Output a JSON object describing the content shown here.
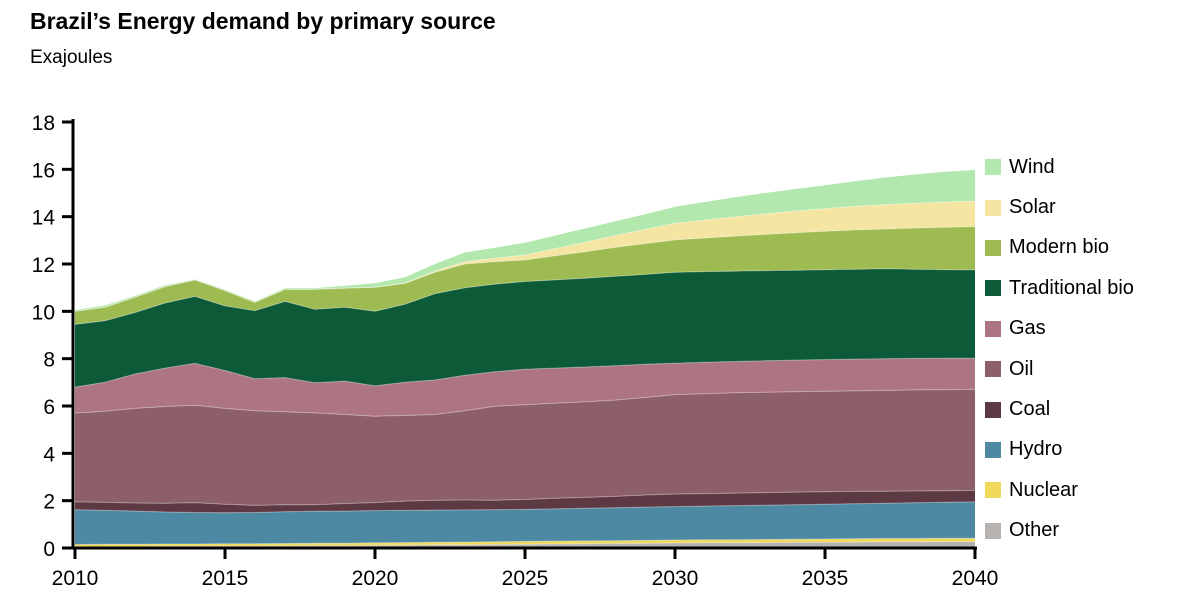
{
  "header": {
    "title": "Brazil’s Energy demand by primary source",
    "subtitle": "Exajoules"
  },
  "chart_data": {
    "type": "area",
    "stacked": true,
    "title": "Brazil’s Energy demand by primary source",
    "unit_label": "Exajoules",
    "xlabel": "",
    "ylabel": "Exajoules",
    "xlim": [
      2010,
      2040
    ],
    "ylim": [
      0,
      18
    ],
    "x_ticks": [
      2010,
      2015,
      2020,
      2025,
      2030,
      2035,
      2040
    ],
    "y_ticks": [
      0,
      2,
      4,
      6,
      8,
      10,
      12,
      14,
      16,
      18
    ],
    "grid": false,
    "legend_position": "right",
    "x": [
      2010,
      2011,
      2012,
      2013,
      2014,
      2015,
      2016,
      2017,
      2018,
      2019,
      2020,
      2021,
      2022,
      2023,
      2024,
      2025,
      2026,
      2027,
      2028,
      2029,
      2030,
      2031,
      2032,
      2033,
      2034,
      2035,
      2036,
      2037,
      2038,
      2039,
      2040
    ],
    "series": [
      {
        "name": "Other",
        "color": "#b5b2b0",
        "values": [
          0.05,
          0.06,
          0.06,
          0.07,
          0.07,
          0.08,
          0.08,
          0.09,
          0.1,
          0.1,
          0.11,
          0.12,
          0.13,
          0.14,
          0.15,
          0.16,
          0.17,
          0.18,
          0.19,
          0.2,
          0.21,
          0.22,
          0.22,
          0.23,
          0.24,
          0.24,
          0.25,
          0.26,
          0.26,
          0.27,
          0.27
        ]
      },
      {
        "name": "Nuclear",
        "color": "#f0d859",
        "values": [
          0.1,
          0.1,
          0.1,
          0.1,
          0.1,
          0.1,
          0.1,
          0.1,
          0.1,
          0.1,
          0.11,
          0.11,
          0.11,
          0.11,
          0.11,
          0.12,
          0.12,
          0.12,
          0.12,
          0.12,
          0.13,
          0.13,
          0.13,
          0.13,
          0.13,
          0.14,
          0.14,
          0.14,
          0.14,
          0.14,
          0.14
        ]
      },
      {
        "name": "Hydro",
        "color": "#4d89a3",
        "values": [
          1.47,
          1.43,
          1.4,
          1.35,
          1.33,
          1.31,
          1.32,
          1.34,
          1.35,
          1.36,
          1.36,
          1.36,
          1.36,
          1.36,
          1.36,
          1.35,
          1.36,
          1.38,
          1.39,
          1.41,
          1.41,
          1.42,
          1.44,
          1.45,
          1.46,
          1.47,
          1.48,
          1.49,
          1.51,
          1.52,
          1.54
        ]
      },
      {
        "name": "Coal",
        "color": "#5d3a43",
        "values": [
          0.33,
          0.34,
          0.34,
          0.37,
          0.42,
          0.36,
          0.3,
          0.3,
          0.28,
          0.32,
          0.34,
          0.39,
          0.42,
          0.42,
          0.4,
          0.42,
          0.45,
          0.46,
          0.48,
          0.51,
          0.53,
          0.53,
          0.53,
          0.53,
          0.53,
          0.53,
          0.52,
          0.51,
          0.5,
          0.49,
          0.48
        ]
      },
      {
        "name": "Oil",
        "color": "#8d5f68",
        "values": [
          3.75,
          3.85,
          4.0,
          4.09,
          4.11,
          4.05,
          4.0,
          3.92,
          3.88,
          3.76,
          3.65,
          3.62,
          3.62,
          3.77,
          3.97,
          4.0,
          4.02,
          4.04,
          4.07,
          4.12,
          4.2,
          4.22,
          4.24,
          4.24,
          4.24,
          4.24,
          4.25,
          4.26,
          4.27,
          4.27,
          4.27
        ]
      },
      {
        "name": "Gas",
        "color": "#ad7584",
        "values": [
          1.1,
          1.22,
          1.45,
          1.62,
          1.77,
          1.6,
          1.35,
          1.45,
          1.27,
          1.41,
          1.28,
          1.4,
          1.46,
          1.5,
          1.46,
          1.5,
          1.48,
          1.47,
          1.45,
          1.4,
          1.33,
          1.33,
          1.32,
          1.33,
          1.34,
          1.34,
          1.34,
          1.34,
          1.33,
          1.33,
          1.32
        ]
      },
      {
        "name": "Traditional bio",
        "color": "#0c5a38",
        "values": [
          2.65,
          2.6,
          2.6,
          2.75,
          2.83,
          2.73,
          2.88,
          3.22,
          3.11,
          3.12,
          3.15,
          3.3,
          3.65,
          3.7,
          3.7,
          3.71,
          3.73,
          3.75,
          3.78,
          3.8,
          3.84,
          3.83,
          3.82,
          3.81,
          3.8,
          3.8,
          3.8,
          3.8,
          3.77,
          3.74,
          3.73
        ]
      },
      {
        "name": "Modern bio",
        "color": "#9dbb51",
        "values": [
          0.55,
          0.58,
          0.65,
          0.7,
          0.7,
          0.65,
          0.35,
          0.51,
          0.84,
          0.81,
          1.02,
          0.88,
          0.9,
          1.0,
          0.95,
          0.91,
          1.02,
          1.12,
          1.22,
          1.3,
          1.37,
          1.42,
          1.48,
          1.53,
          1.58,
          1.62,
          1.66,
          1.68,
          1.74,
          1.79,
          1.83
        ]
      },
      {
        "name": "Solar",
        "color": "#f4e5a2",
        "values": [
          0,
          0,
          0,
          0,
          0,
          0,
          0,
          0,
          0,
          0,
          0,
          0.02,
          0.05,
          0.1,
          0.15,
          0.21,
          0.3,
          0.4,
          0.5,
          0.6,
          0.7,
          0.76,
          0.82,
          0.87,
          0.92,
          0.96,
          1.0,
          1.03,
          1.05,
          1.07,
          1.08
        ]
      },
      {
        "name": "Wind",
        "color": "#b2e8ad",
        "values": [
          0.05,
          0.07,
          0.05,
          0.05,
          0.02,
          0.04,
          0.04,
          0.05,
          0.05,
          0.1,
          0.17,
          0.24,
          0.3,
          0.39,
          0.44,
          0.52,
          0.55,
          0.58,
          0.6,
          0.64,
          0.7,
          0.76,
          0.82,
          0.88,
          0.93,
          0.99,
          1.06,
          1.14,
          1.21,
          1.28,
          1.31
        ]
      }
    ],
    "legend_top_to_bottom": [
      "Wind",
      "Solar",
      "Modern bio",
      "Traditional bio",
      "Gas",
      "Oil",
      "Coal",
      "Hydro",
      "Nuclear",
      "Other"
    ]
  }
}
